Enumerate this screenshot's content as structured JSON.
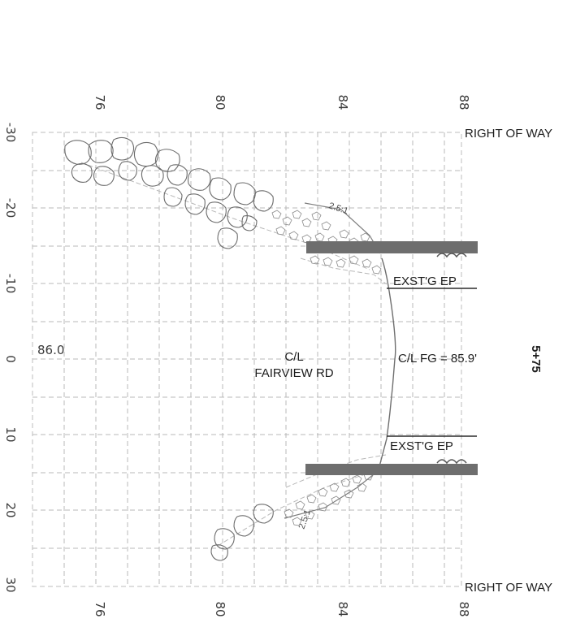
{
  "bottom_ticks": [
    "76",
    "80",
    "84",
    "88"
  ],
  "top_ticks": [
    "76",
    "80",
    "84",
    "88"
  ],
  "left_ticks": [
    "-30",
    "-20",
    "-10",
    "0",
    "10",
    "20",
    "30"
  ],
  "labels": {
    "row_top": "RIGHT OF WAY",
    "row_bottom": "RIGHT OF WAY",
    "exst_ep_top": "EXST'G EP",
    "exst_ep_bottom": "EXST'G EP",
    "cl_fg": "C/L FG = 85.9'",
    "cl_line1": "C/L",
    "cl_line2": "FAIRVIEW RD",
    "elevation": "86.0",
    "station": "5+75",
    "slope_top": "2.5:1",
    "slope_bottom": "2.5:1"
  }
}
